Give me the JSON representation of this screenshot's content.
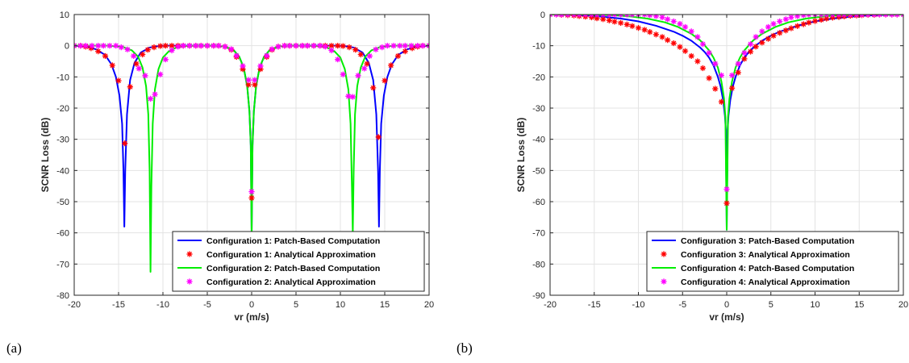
{
  "chart_data": [
    {
      "type": "line",
      "panel_label": "(a)",
      "xlabel": "vr (m/s)",
      "ylabel": "SCNR Loss (dB)",
      "xlim": [
        -20,
        20
      ],
      "ylim": [
        -80,
        10
      ],
      "xticks": [
        -20,
        -15,
        -10,
        -5,
        0,
        5,
        10,
        15,
        20
      ],
      "yticks": [
        10,
        0,
        -10,
        -20,
        -30,
        -40,
        -50,
        -60,
        -70,
        -80
      ],
      "grid": true,
      "legend_position": "bottom-right",
      "series": [
        {
          "name": "Configuration 1: Patch-Based Computation",
          "style": "line",
          "color": "#0000ff",
          "x": [
            -20,
            -18.5,
            -17.5,
            -16.5,
            -15.8,
            -15.3,
            -14.9,
            -14.6,
            -14.45,
            -14.35,
            -14.25,
            -14.05,
            -13.7,
            -13.2,
            -12.5,
            -11.5,
            -10.5,
            -9.5,
            -8,
            -6,
            -4,
            -3,
            -2,
            -1.4,
            -0.9,
            -0.5,
            -0.25,
            -0.1,
            0,
            0.1,
            0.25,
            0.5,
            0.9,
            1.4,
            2,
            3,
            4,
            6,
            8,
            9.5,
            10.5,
            11.5,
            12.5,
            13.2,
            13.7,
            14.05,
            14.25,
            14.35,
            14.45,
            14.6,
            14.9,
            15.3,
            15.8,
            16.5,
            17.5,
            18.5,
            20
          ],
          "y": [
            0,
            -0.3,
            -1.2,
            -3,
            -6,
            -10,
            -16,
            -25,
            -40,
            -58,
            -40,
            -22,
            -11,
            -5.5,
            -2.2,
            -0.6,
            -0.1,
            0,
            0,
            0,
            0,
            -0.3,
            -1.5,
            -3.5,
            -7,
            -13,
            -21,
            -32,
            -60,
            -32,
            -21,
            -13,
            -7,
            -3.5,
            -1.5,
            -0.3,
            0,
            0,
            0,
            0,
            -0.1,
            -0.6,
            -2.2,
            -5.5,
            -11,
            -22,
            -40,
            -58,
            -40,
            -25,
            -16,
            -10,
            -6,
            -3,
            -1.2,
            -0.3,
            0
          ]
        },
        {
          "name": "Configuration 1: Analytical Approximation",
          "style": "marker",
          "marker": "*",
          "color": "#ff0000",
          "x": [
            -20,
            -19.3,
            -18.7,
            -18.1,
            -17.3,
            -16.5,
            -15.7,
            -15,
            -14.3,
            -13.7,
            -13,
            -12.3,
            -11.7,
            -11,
            -10.3,
            -9.7,
            -9,
            -8.3,
            -7.7,
            -7,
            -6.3,
            -5.7,
            -5,
            -4.3,
            -3.7,
            -3,
            -2.3,
            -1.7,
            -1,
            -0.35,
            0,
            0.35,
            1,
            1.7,
            2.3,
            3,
            3.7,
            4.3,
            5,
            5.7,
            6.3,
            7,
            7.7,
            8.3,
            9,
            9.7,
            10.3,
            11,
            11.7,
            12.3,
            13,
            13.7,
            14.3,
            15,
            15.7,
            16.5,
            17.3,
            18.1,
            18.7,
            19.3,
            20
          ],
          "y": [
            0,
            0,
            -0.3,
            -0.8,
            -1.8,
            -3.3,
            -6.3,
            -11.2,
            -31.3,
            -13.2,
            -5.8,
            -2.8,
            -1.3,
            -0.5,
            -0.1,
            0,
            0,
            0,
            0,
            0,
            0,
            0,
            0,
            0,
            0,
            -0.3,
            -1.3,
            -3.6,
            -7.5,
            -12.5,
            -48.8,
            -12.5,
            -7.5,
            -3.6,
            -1.3,
            -0.3,
            0,
            0,
            0,
            0,
            0,
            0,
            0,
            0,
            0,
            0,
            -0.1,
            -0.5,
            -1.3,
            -2.8,
            -5.8,
            -13.5,
            -29.3,
            -11.2,
            -6.3,
            -3.3,
            -1.8,
            -0.8,
            -0.3,
            0,
            0
          ]
        },
        {
          "name": "Configuration 2: Patch-Based Computation",
          "style": "line",
          "color": "#00ee00",
          "x": [
            -20,
            -16,
            -14.5,
            -13.5,
            -12.8,
            -12.3,
            -11.9,
            -11.65,
            -11.5,
            -11.4,
            -11.3,
            -11.15,
            -10.9,
            -10.5,
            -10,
            -9.3,
            -8.5,
            -7.5,
            -6,
            -4,
            -3,
            -2,
            -1.4,
            -0.9,
            -0.5,
            -0.25,
            -0.1,
            0,
            0.1,
            0.25,
            0.5,
            0.9,
            1.4,
            2,
            3,
            4,
            6,
            7.5,
            8.5,
            9.3,
            10,
            10.5,
            10.9,
            11.15,
            11.3,
            11.4,
            11.5,
            11.65,
            11.9,
            12.3,
            12.8,
            13.5,
            14.5,
            16,
            20
          ],
          "y": [
            0,
            0,
            -0.4,
            -1.5,
            -3.5,
            -7,
            -13,
            -22,
            -40,
            -72.5,
            -45,
            -25,
            -14,
            -7.5,
            -3.8,
            -1.7,
            -0.6,
            -0.1,
            0,
            0,
            -0.3,
            -1.5,
            -3.5,
            -7,
            -13,
            -21,
            -32,
            -62,
            -32,
            -21,
            -13,
            -7,
            -3.5,
            -1.5,
            -0.3,
            0,
            0,
            -0.1,
            -0.6,
            -1.7,
            -3.8,
            -7.5,
            -14,
            -25,
            -45,
            -60,
            -40,
            -22,
            -13,
            -7,
            -3.5,
            -1.5,
            -0.4,
            0,
            0
          ]
        },
        {
          "name": "Configuration 2: Analytical Approximation",
          "style": "marker",
          "marker": "*",
          "color": "#ff00ff",
          "x": [
            -20,
            -19.3,
            -18.7,
            -18,
            -17.3,
            -16.7,
            -16,
            -15.3,
            -14.7,
            -14,
            -13.3,
            -12.7,
            -12,
            -11.4,
            -10.9,
            -10.3,
            -9.7,
            -9,
            -8.3,
            -7.7,
            -7,
            -6.3,
            -5.7,
            -5,
            -4.3,
            -3.7,
            -3,
            -2.3,
            -1.7,
            -1,
            -0.35,
            0,
            0.35,
            1,
            1.7,
            2.3,
            3,
            3.7,
            4.3,
            5,
            5.7,
            6.3,
            7,
            7.7,
            8.3,
            9,
            9.7,
            10.3,
            10.9,
            11.4,
            12,
            12.7,
            13.3,
            14,
            14.7,
            15.3,
            16,
            16.7,
            17.3,
            18,
            18.7,
            19.3,
            20
          ],
          "y": [
            0,
            0,
            0,
            0,
            0,
            0,
            0,
            0,
            -0.5,
            -1.2,
            -3.3,
            -7.3,
            -9.6,
            -17,
            -15.6,
            -9.2,
            -4.4,
            -1.5,
            -0.3,
            0,
            0,
            0,
            0,
            0,
            0,
            0,
            -0.3,
            -1.1,
            -3.2,
            -6.5,
            -11,
            -46.8,
            -11,
            -6.5,
            -3.2,
            -1.1,
            -0.3,
            0,
            0,
            0,
            0,
            0,
            0,
            0,
            -0.3,
            -1.5,
            -4.4,
            -9.2,
            -16.2,
            -16.4,
            -9.6,
            -7.3,
            -3.3,
            -1.2,
            -0.5,
            0,
            0,
            0,
            0,
            0,
            0,
            0,
            0
          ]
        }
      ]
    },
    {
      "type": "line",
      "panel_label": "(b)",
      "xlabel": "vr (m/s)",
      "ylabel": "SCNR Loss (dB)",
      "xlim": [
        -20,
        20
      ],
      "ylim": [
        -90,
        0
      ],
      "xticks": [
        -20,
        -15,
        -10,
        -5,
        0,
        5,
        10,
        15,
        20
      ],
      "yticks": [
        0,
        -10,
        -20,
        -30,
        -40,
        -50,
        -60,
        -70,
        -80,
        -90
      ],
      "grid": true,
      "legend_position": "bottom-right",
      "series": [
        {
          "name": "Configuration 3: Patch-Based Computation",
          "style": "line",
          "color": "#0000ff",
          "x": [
            -20,
            -18,
            -16,
            -14,
            -12,
            -10,
            -8,
            -6,
            -5,
            -4,
            -3,
            -2.5,
            -2,
            -1.5,
            -1,
            -0.7,
            -0.4,
            -0.2,
            -0.1,
            0,
            0.1,
            0.2,
            0.4,
            0.7,
            1,
            1.5,
            2,
            2.5,
            3,
            4,
            5,
            6,
            8,
            10,
            12,
            14,
            16,
            18,
            20
          ],
          "y": [
            0,
            -0.1,
            -0.3,
            -0.7,
            -1.3,
            -2.2,
            -3.6,
            -5.5,
            -6.8,
            -8.4,
            -10.6,
            -12,
            -13.8,
            -16.3,
            -20,
            -23,
            -27.5,
            -32.5,
            -37,
            -69,
            -37,
            -32.5,
            -27.5,
            -23,
            -20,
            -16.3,
            -13.8,
            -12,
            -10.6,
            -8.4,
            -6.8,
            -5.5,
            -3.6,
            -2.2,
            -1.3,
            -0.7,
            -0.3,
            -0.1,
            0
          ]
        },
        {
          "name": "Configuration 3: Analytical Approximation",
          "style": "marker",
          "marker": "*",
          "color": "#ff0000",
          "x": [
            -20,
            -19.3,
            -18.7,
            -18,
            -17.3,
            -16.7,
            -16,
            -15.3,
            -14.7,
            -14,
            -13.3,
            -12.7,
            -12,
            -11.3,
            -10.7,
            -10,
            -9.3,
            -8.7,
            -8,
            -7.3,
            -6.7,
            -6,
            -5.3,
            -4.7,
            -4,
            -3.3,
            -2.7,
            -2,
            -1.3,
            -0.6,
            0,
            0.6,
            1.3,
            2,
            2.7,
            3.3,
            4,
            4.7,
            5.3,
            6,
            6.7,
            7.3,
            8,
            8.7,
            9.3,
            10,
            10.7,
            11.3,
            12,
            12.7,
            13.3,
            14,
            14.7,
            15.3,
            16,
            16.7,
            17.3,
            18,
            18.7,
            19.3,
            20
          ],
          "y": [
            0,
            0,
            -0.1,
            -0.2,
            -0.3,
            -0.5,
            -0.7,
            -0.9,
            -1.2,
            -1.5,
            -1.9,
            -2.3,
            -2.7,
            -3.2,
            -3.7,
            -4.3,
            -4.9,
            -5.6,
            -6.4,
            -7.2,
            -8.2,
            -9.2,
            -10.4,
            -11.7,
            -13.3,
            -15,
            -17.2,
            -20.4,
            -23.8,
            -28,
            -60.5,
            -23.6,
            -18.6,
            -14.2,
            -11.9,
            -10.3,
            -9,
            -7.8,
            -6.8,
            -5.9,
            -5.1,
            -4.4,
            -3.7,
            -3.1,
            -2.6,
            -2.1,
            -1.7,
            -1.3,
            -1,
            -0.8,
            -0.6,
            -0.4,
            -0.3,
            -0.2,
            -0.1,
            -0.1,
            0,
            0,
            0,
            0,
            0
          ]
        },
        {
          "name": "Configuration 4: Patch-Based Computation",
          "style": "line",
          "color": "#00ee00",
          "x": [
            -20,
            -16,
            -13,
            -11,
            -9,
            -7,
            -5.5,
            -4,
            -3,
            -2,
            -1.5,
            -1,
            -0.6,
            -0.3,
            -0.15,
            0,
            0.15,
            0.3,
            0.6,
            1,
            1.5,
            2,
            3,
            4,
            5.5,
            7,
            9,
            11,
            13,
            16,
            20
          ],
          "y": [
            0,
            0,
            -0.2,
            -0.6,
            -1.3,
            -2.5,
            -4,
            -6.2,
            -8.3,
            -11.5,
            -13.8,
            -17,
            -21.5,
            -27,
            -33,
            -69,
            -33,
            -27,
            -21.5,
            -17,
            -13.8,
            -11.5,
            -8.3,
            -6.2,
            -4,
            -2.5,
            -1.3,
            -0.6,
            -0.2,
            0,
            0
          ]
        },
        {
          "name": "Configuration 4: Analytical Approximation",
          "style": "marker",
          "marker": "*",
          "color": "#ff00ff",
          "x": [
            -20,
            -19.3,
            -18.7,
            -18,
            -17.3,
            -16.7,
            -16,
            -15.3,
            -14.7,
            -14,
            -13.3,
            -12.7,
            -12,
            -11.3,
            -10.7,
            -10,
            -9.3,
            -8.7,
            -8,
            -7.3,
            -6.7,
            -6,
            -5.3,
            -4.7,
            -4,
            -3.3,
            -2.7,
            -2,
            -1.3,
            -0.6,
            0,
            0.6,
            1.3,
            2,
            2.7,
            3.3,
            4,
            4.7,
            5.3,
            6,
            6.7,
            7.3,
            8,
            8.7,
            9.3,
            10,
            10.7,
            11.3,
            12,
            12.7,
            13.3,
            14,
            14.7,
            15.3,
            16,
            16.7,
            17.3,
            18,
            18.7,
            19.3,
            20
          ],
          "y": [
            0,
            0,
            0,
            0,
            0,
            0,
            0,
            0,
            0,
            0,
            0,
            0,
            0,
            0,
            0,
            0,
            0,
            -0.2,
            -0.5,
            -0.9,
            -1.5,
            -2.2,
            -3,
            -4,
            -5.4,
            -7.2,
            -9.5,
            -12.3,
            -15.8,
            -19.5,
            -56,
            -19.5,
            -15.8,
            -12.3,
            -9.5,
            -7.2,
            -5.4,
            -4,
            -3,
            -2.2,
            -1.5,
            -0.9,
            -0.5,
            -0.2,
            0,
            0,
            0,
            0,
            0,
            0,
            0,
            0,
            0,
            0,
            0,
            0,
            0,
            0,
            0,
            0,
            0
          ]
        }
      ]
    }
  ]
}
